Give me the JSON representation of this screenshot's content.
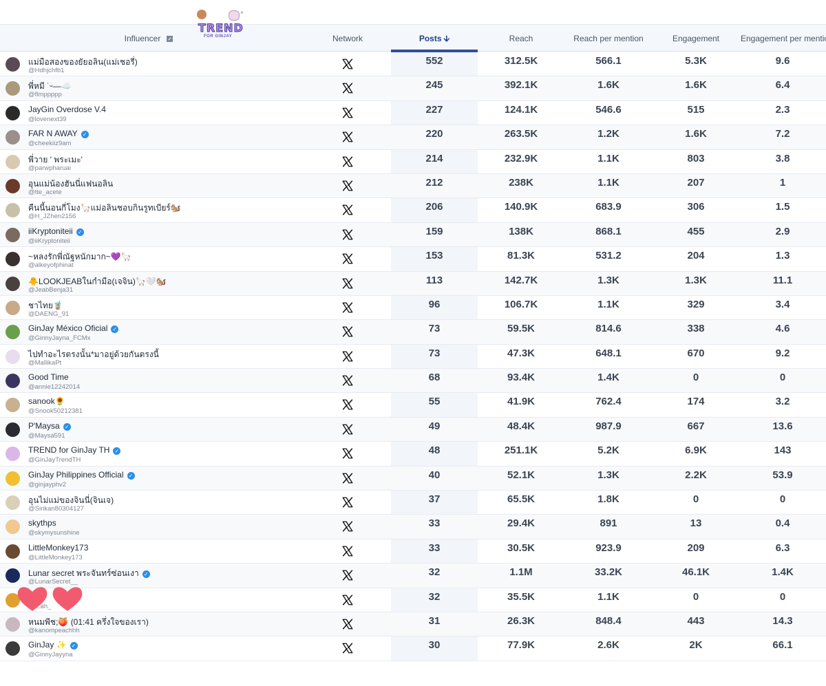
{
  "header": {
    "influencer": "Influencer",
    "network": "Network",
    "posts": "Posts",
    "reach": "Reach",
    "reach_per_mention": "Reach per mention",
    "engagement": "Engagement",
    "engagement_per_mention": "Engagement per mention"
  },
  "logo": {
    "title": "TREND",
    "subtitle": "FOR GINJAY"
  },
  "colors": {
    "accent": "#2f4f9e",
    "verified": "#2c8ee8",
    "heart": "#f25b6f"
  },
  "rows": [
    {
      "name": "แม่มือสองของยัยอลิน(แม่เชอรี่)",
      "verified": false,
      "handle": "@Hdhjchfb1",
      "posts": "552",
      "reach": "312.5K",
      "rpm": "566.1",
      "engagement": "5.3K",
      "epm": "9.6",
      "avatar": "#5a4a55"
    },
    {
      "name": "พี่หมี ˙ᵕ—☁️",
      "verified": false,
      "handle": "@flmppppp",
      "posts": "245",
      "reach": "392.1K",
      "rpm": "1.6K",
      "engagement": "1.6K",
      "epm": "6.4",
      "avatar": "#a89a7a"
    },
    {
      "name": "JayGin Overdose V.4",
      "verified": false,
      "handle": "@lovenext39",
      "posts": "227",
      "reach": "124.1K",
      "rpm": "546.6",
      "engagement": "515",
      "epm": "2.3",
      "avatar": "#2a2a2a"
    },
    {
      "name": "FAR N AWAY",
      "verified": true,
      "handle": "@cheekiiz9am",
      "posts": "220",
      "reach": "263.5K",
      "rpm": "1.2K",
      "engagement": "1.6K",
      "epm": "7.2",
      "avatar": "#9a8f8a"
    },
    {
      "name": "พี่วาย ' พระเมะ'",
      "verified": false,
      "handle": "@parwpharuai",
      "posts": "214",
      "reach": "232.9K",
      "rpm": "1.1K",
      "engagement": "803",
      "epm": "3.8",
      "avatar": "#d8c9b0"
    },
    {
      "name": "อุนแม่น้องฮันนี่แฟนอลิน",
      "verified": false,
      "handle": "@tte_acete",
      "posts": "212",
      "reach": "238K",
      "rpm": "1.1K",
      "engagement": "207",
      "epm": "1",
      "avatar": "#6b3a2a"
    },
    {
      "name": "คืนนี้นอนกี่โมง🦙แม่อลินชอบกินรูทเบียร์🐿️",
      "verified": false,
      "handle": "@H_JZhen2156",
      "posts": "206",
      "reach": "140.9K",
      "rpm": "683.9",
      "engagement": "306",
      "epm": "1.5",
      "avatar": "#c8c0a8"
    },
    {
      "name": "iiKryptoniteii",
      "verified": true,
      "handle": "@iiKryptoniteii",
      "posts": "159",
      "reach": "138K",
      "rpm": "868.1",
      "engagement": "455",
      "epm": "2.9",
      "avatar": "#7a6a60"
    },
    {
      "name": "~หลงรักพี่ณัฐหนักมาก~💜🦙",
      "verified": false,
      "handle": "@alkeyofphinat",
      "posts": "153",
      "reach": "81.3K",
      "rpm": "531.2",
      "engagement": "204",
      "epm": "1.3",
      "avatar": "#3a3030"
    },
    {
      "name": "🐥LOOKJEABในกำมือ(เจจิน)🦙🤍🐿️",
      "verified": false,
      "handle": "@JeabBenja31",
      "posts": "113",
      "reach": "142.7K",
      "rpm": "1.3K",
      "engagement": "1.3K",
      "epm": "11.1",
      "avatar": "#4a4040"
    },
    {
      "name": "ชาไทย🧋",
      "verified": false,
      "handle": "@DAENG_91",
      "posts": "96",
      "reach": "106.7K",
      "rpm": "1.1K",
      "engagement": "329",
      "epm": "3.4",
      "avatar": "#c9a98a"
    },
    {
      "name": "GinJay México Oficial",
      "verified": true,
      "handle": "@GinnyJayna_FCMx",
      "posts": "73",
      "reach": "59.5K",
      "rpm": "814.6",
      "engagement": "338",
      "epm": "4.6",
      "avatar": "#6aa04a"
    },
    {
      "name": "ไปทำอะไรตรงนั้น*มาอยู่ด้วยกันตรงนี้",
      "verified": false,
      "handle": "@MallikaPt",
      "posts": "73",
      "reach": "47.3K",
      "rpm": "648.1",
      "engagement": "670",
      "epm": "9.2",
      "avatar": "#e8dcef"
    },
    {
      "name": "Good Time",
      "verified": false,
      "handle": "@annie12242014",
      "posts": "68",
      "reach": "93.4K",
      "rpm": "1.4K",
      "engagement": "0",
      "epm": "0",
      "avatar": "#3a3560"
    },
    {
      "name": "sanook🌻",
      "verified": false,
      "handle": "@Snook50212381",
      "posts": "55",
      "reach": "41.9K",
      "rpm": "762.4",
      "engagement": "174",
      "epm": "3.2",
      "avatar": "#c8b090"
    },
    {
      "name": "P'Maysa",
      "verified": true,
      "handle": "@Maysa591",
      "posts": "49",
      "reach": "48.4K",
      "rpm": "987.9",
      "engagement": "667",
      "epm": "13.6",
      "avatar": "#2a2a30"
    },
    {
      "name": "TREND for GinJay TH",
      "verified": true,
      "handle": "@GinJayTrendTH",
      "posts": "48",
      "reach": "251.1K",
      "rpm": "5.2K",
      "engagement": "6.9K",
      "epm": "143",
      "avatar": "#d9b8e8"
    },
    {
      "name": "GinJay Philippines Official",
      "verified": true,
      "handle": "@ginjayphv2",
      "posts": "40",
      "reach": "52.1K",
      "rpm": "1.3K",
      "engagement": "2.2K",
      "epm": "53.9",
      "avatar": "#f0c030"
    },
    {
      "name": "อุนไม่แม่ของจินนี่(จินเจ)",
      "verified": false,
      "handle": "@Sirikan80304127",
      "posts": "37",
      "reach": "65.5K",
      "rpm": "1.8K",
      "engagement": "0",
      "epm": "0",
      "avatar": "#d8d0b8"
    },
    {
      "name": "skythps",
      "verified": false,
      "handle": "@skymysunshine",
      "posts": "33",
      "reach": "29.4K",
      "rpm": "891",
      "engagement": "13",
      "epm": "0.4",
      "avatar": "#f0c890"
    },
    {
      "name": "LittleMonkey173",
      "verified": false,
      "handle": "@LittleMonkey173",
      "posts": "33",
      "reach": "30.5K",
      "rpm": "923.9",
      "engagement": "209",
      "epm": "6.3",
      "avatar": "#6a4a30"
    },
    {
      "name": "Lunar secret พระจันทร์ซ่อนเงา",
      "verified": true,
      "handle": "@LunarSecret__",
      "posts": "32",
      "reach": "1.1M",
      "rpm": "33.2K",
      "engagement": "46.1K",
      "epm": "1.4K",
      "avatar": "#1a2a5a"
    },
    {
      "name": "",
      "verified": false,
      "handle": "@...ah_",
      "posts": "32",
      "reach": "35.5K",
      "rpm": "1.1K",
      "engagement": "0",
      "epm": "0",
      "avatar": "#e0a030"
    },
    {
      "name": "หนมพีช;🍑 (01:41 ครึ่งใจของเรา)",
      "verified": false,
      "handle": "@kanompeachhh",
      "posts": "31",
      "reach": "26.3K",
      "rpm": "848.4",
      "engagement": "443",
      "epm": "14.3",
      "avatar": "#c8b8c0"
    },
    {
      "name": "GinJay ✨",
      "verified": true,
      "handle": "@GinnyJayyna",
      "posts": "30",
      "reach": "77.9K",
      "rpm": "2.6K",
      "engagement": "2K",
      "epm": "66.1",
      "avatar": "#3a3a3a"
    }
  ]
}
